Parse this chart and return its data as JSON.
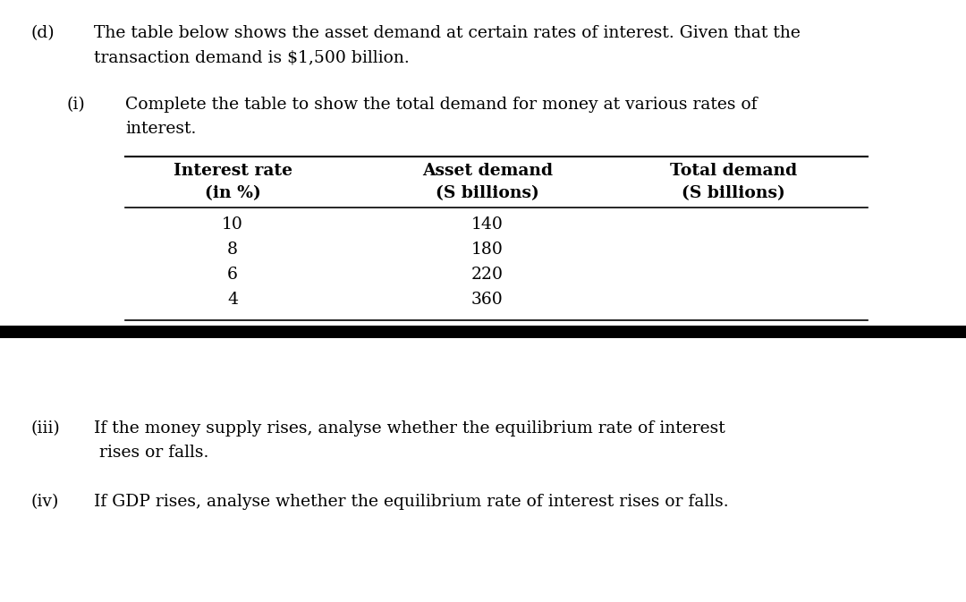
{
  "bg_color": "#ffffff",
  "text_color": "#000000",
  "d_label": "(d)",
  "d_text_line1": "The table below shows the asset demand at certain rates of interest. Given that the",
  "d_text_line2": "transaction demand is $1,500 billion.",
  "i_label": "(i)",
  "i_text_line1": "Complete the table to show the total demand for money at various rates of",
  "i_text_line2": "interest.",
  "col_header1_line1": "Interest rate",
  "col_header1_line2": "(in %)",
  "col_header2_line1": "Asset demand",
  "col_header2_line2": "(S billions)",
  "col_header3_line1": "Total demand",
  "col_header3_line2": "(S billions)",
  "table_rows": [
    [
      "10",
      "140",
      ""
    ],
    [
      "8",
      "180",
      ""
    ],
    [
      "6",
      "220",
      ""
    ],
    [
      "4",
      "360",
      ""
    ]
  ],
  "iii_label": "(iii)",
  "iii_text_line1": "If the money supply rises, analyse whether the equilibrium rate of interest",
  "iii_text_line2": " rises or falls.",
  "iv_label": "(iv)",
  "iv_text": "If GDP rises, analyse whether the equilibrium rate of interest rises or falls.",
  "font_size": 13.5,
  "font_size_table": 13.5
}
